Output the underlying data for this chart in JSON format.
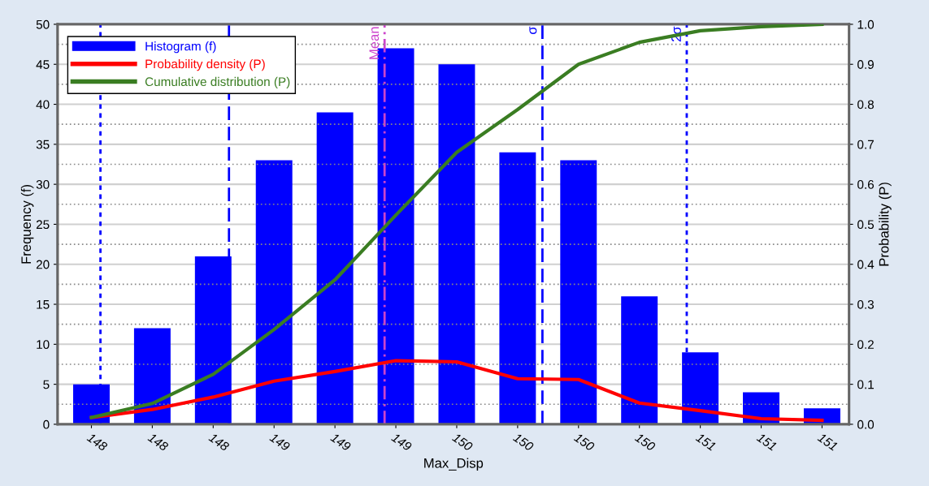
{
  "chart_data": {
    "type": "bar",
    "xlabel": "Max_Disp",
    "ylabel": "Frequency (f)",
    "y2label": "Probability (P)",
    "x": [
      147.9,
      148.17,
      148.44,
      148.71,
      148.98,
      149.25,
      149.52,
      149.79,
      150.06,
      150.33,
      150.6,
      150.87,
      151.14
    ],
    "xlim": [
      147.75,
      151.26
    ],
    "xticks": [
      {
        "value": 147.9,
        "label": "148"
      },
      {
        "value": 148.17,
        "label": "148"
      },
      {
        "value": 148.44,
        "label": "148"
      },
      {
        "value": 148.71,
        "label": "149"
      },
      {
        "value": 148.98,
        "label": "149"
      },
      {
        "value": 149.25,
        "label": "149"
      },
      {
        "value": 149.52,
        "label": "150"
      },
      {
        "value": 149.79,
        "label": "150"
      },
      {
        "value": 150.06,
        "label": "150"
      },
      {
        "value": 150.33,
        "label": "150"
      },
      {
        "value": 150.6,
        "label": "151"
      },
      {
        "value": 150.87,
        "label": "151"
      },
      {
        "value": 151.14,
        "label": "151"
      }
    ],
    "series": [
      {
        "name": "Histogram (f)",
        "color": "#0000ff",
        "values": [
          5,
          12,
          21,
          33,
          39,
          47,
          45,
          34,
          33,
          16,
          9,
          4,
          2
        ]
      },
      {
        "name": "Probability density (P)",
        "type": "line",
        "axis": "y2",
        "color": "#ff0000",
        "values": [
          0.017,
          0.037,
          0.068,
          0.108,
          0.132,
          0.159,
          0.156,
          0.114,
          0.112,
          0.053,
          0.034,
          0.014,
          0.01
        ]
      },
      {
        "name": "Cumulative distribution (P)",
        "type": "line",
        "axis": "y2",
        "color": "#3a7d22",
        "values": [
          0.017,
          0.052,
          0.125,
          0.237,
          0.361,
          0.523,
          0.68,
          0.787,
          0.9,
          0.955,
          0.984,
          0.994,
          1.0
        ]
      }
    ],
    "ylim": [
      0,
      50
    ],
    "yticks": [
      0,
      5,
      10,
      15,
      20,
      25,
      30,
      35,
      40,
      45,
      50
    ],
    "y2lim": [
      0,
      1
    ],
    "y2ticks": [
      {
        "value": 0,
        "label": "0.0"
      },
      0.1,
      0.2,
      0.3,
      0.4,
      0.5,
      0.6,
      0.7,
      0.8,
      0.9,
      {
        "value": 1,
        "label": "1.0"
      }
    ],
    "ref_lines": [
      {
        "axis": "x",
        "value": 147.94,
        "label": null,
        "color": "#0000ff",
        "line_style": "dotted"
      },
      {
        "axis": "x",
        "value": 148.51,
        "label": null,
        "color": "#0000ff",
        "line_style": "dashed"
      },
      {
        "axis": "x",
        "value": 149.2,
        "label": "Mean",
        "color": "#cc44cc",
        "line_style": "dashdot"
      },
      {
        "axis": "x",
        "value": 149.9,
        "label": "σ",
        "color": "#0000ff",
        "line_style": "dashed"
      },
      {
        "axis": "x",
        "value": 150.54,
        "label": "2σ",
        "color": "#0000ff",
        "line_style": "dotted"
      }
    ],
    "grid": "y",
    "legend": "top left",
    "marker": "none"
  }
}
